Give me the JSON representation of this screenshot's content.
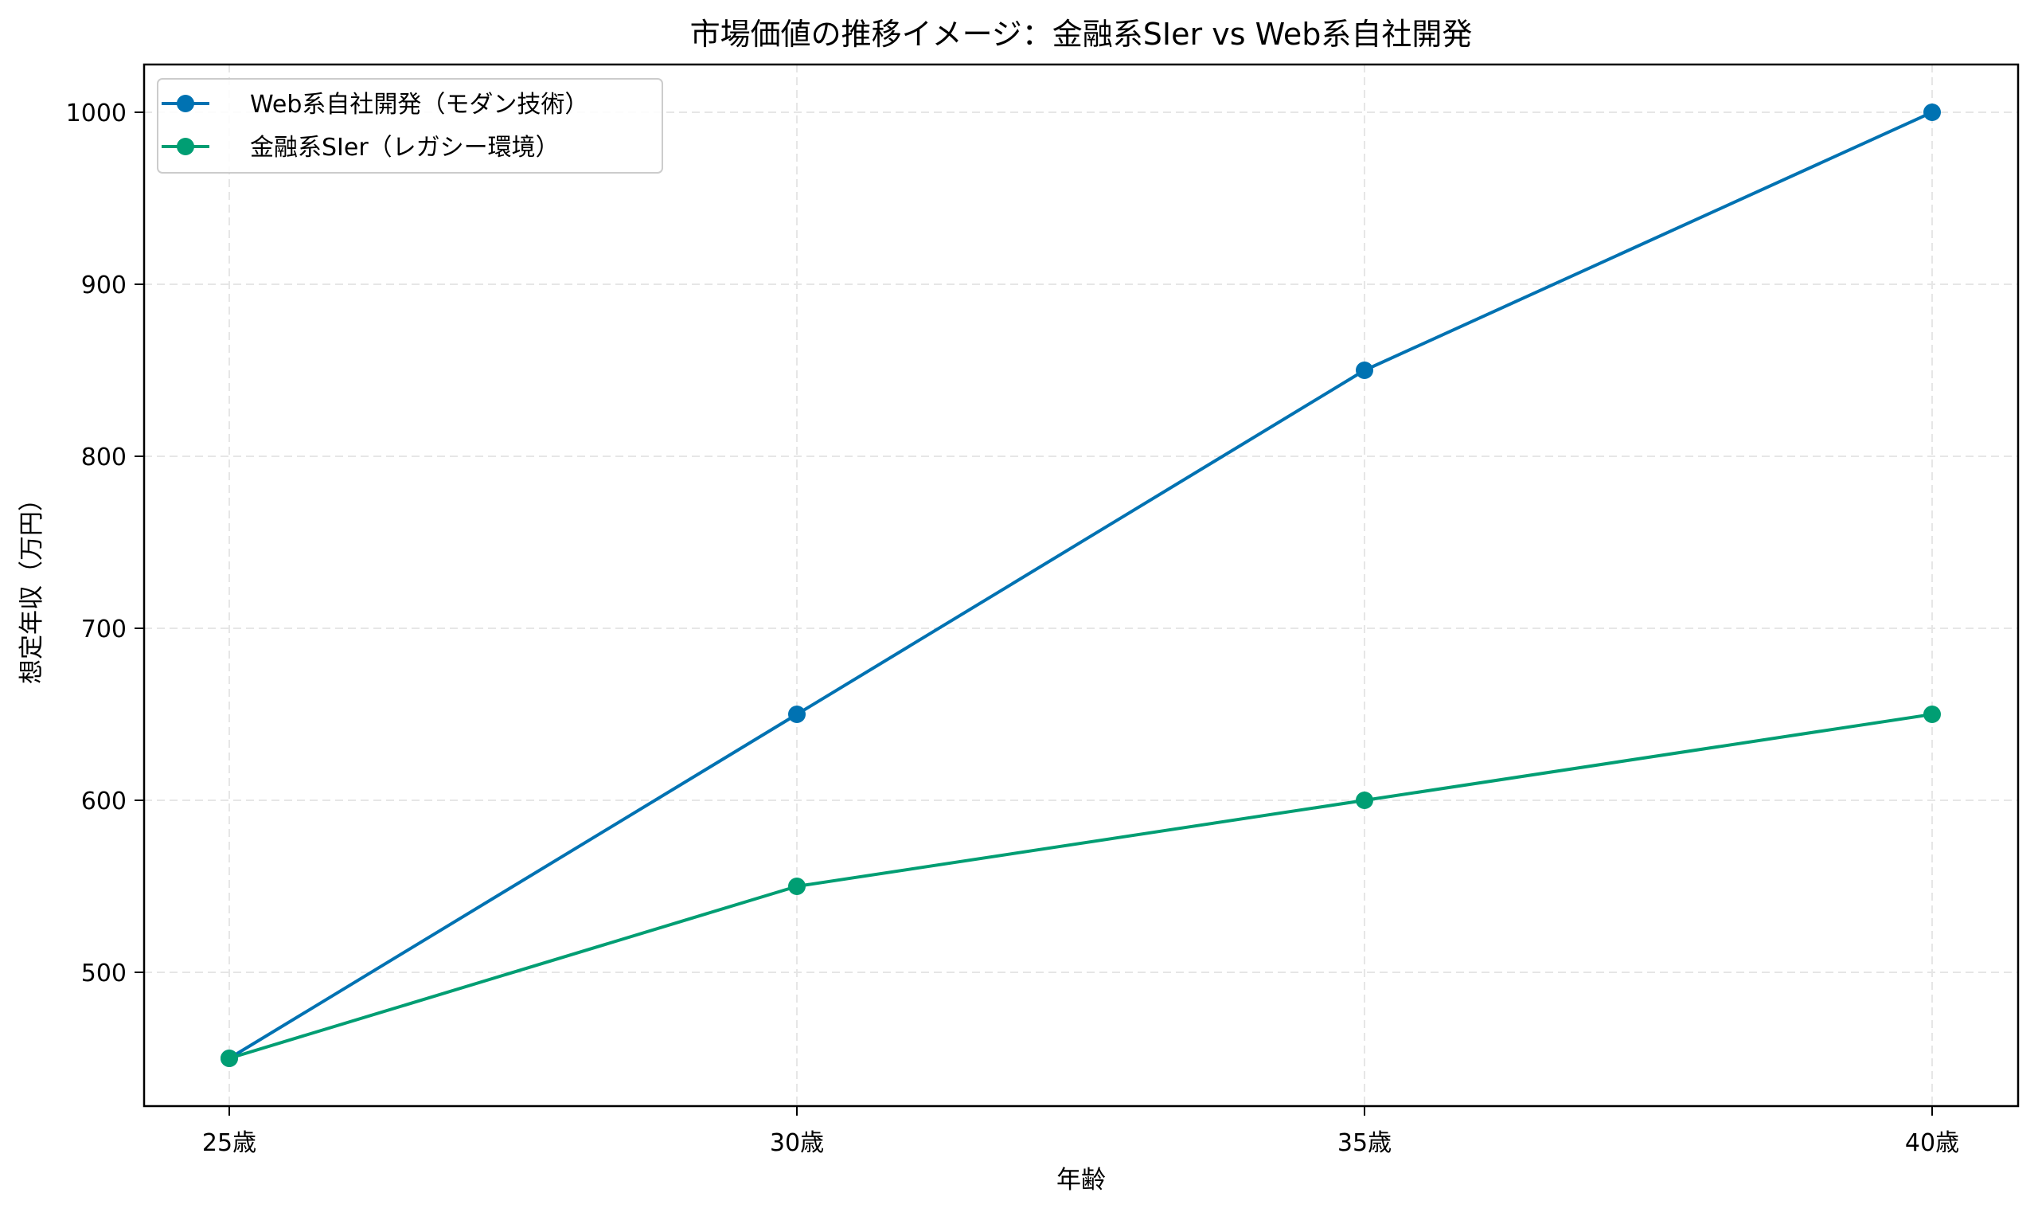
{
  "chart_data": {
    "type": "line",
    "title": "市場価値の推移イメージ：金融系SIer vs Web系自社開発",
    "xlabel": "年齢",
    "ylabel": "想定年収（万円）",
    "categories": [
      "25歳",
      "30歳",
      "35歳",
      "40歳"
    ],
    "series": [
      {
        "name": "Web系自社開発（モダン技術）",
        "color": "#0072b2",
        "marker": "circle",
        "values": [
          450,
          650,
          850,
          1000
        ]
      },
      {
        "name": "金融系SIer（レガシー環境）",
        "color": "#009e73",
        "marker": "circle",
        "values": [
          450,
          550,
          600,
          650
        ]
      }
    ],
    "yticks": [
      500,
      600,
      700,
      800,
      900,
      1000
    ],
    "ylim": [
      422.5,
      1027.5
    ],
    "grid": true,
    "grid_style": "dashed",
    "legend_position": "upper left"
  },
  "colors": {
    "web": "#0072b2",
    "sier": "#009e73",
    "grid": "#e6e6e6",
    "axes": "#000000"
  }
}
